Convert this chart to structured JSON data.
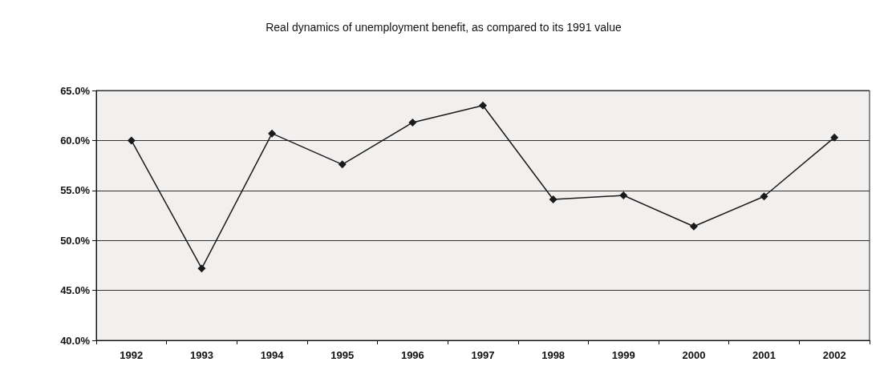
{
  "chart_data": {
    "type": "line",
    "title": "Real dynamics of unemployment benefit, as compared to its 1991 value",
    "categories": [
      "1992",
      "1993",
      "1994",
      "1995",
      "1996",
      "1997",
      "1998",
      "1999",
      "2000",
      "2001",
      "2002"
    ],
    "series": [
      {
        "color": "#1a1a1a",
        "values": [
          60.0,
          47.2,
          60.7,
          57.6,
          61.8,
          63.5,
          54.1,
          54.5,
          51.4,
          54.4,
          60.3
        ]
      }
    ],
    "ylim": [
      40,
      65
    ],
    "yticks": [
      {
        "value": 40,
        "label": "40.0%"
      },
      {
        "value": 45,
        "label": "45.0%"
      },
      {
        "value": 50,
        "label": "50.0%"
      },
      {
        "value": 55,
        "label": "55.0%"
      },
      {
        "value": 60,
        "label": "60.0%"
      },
      {
        "value": 65,
        "label": "65.0%"
      }
    ],
    "grid": "y",
    "marker": "diamond",
    "line_style": "solid"
  }
}
